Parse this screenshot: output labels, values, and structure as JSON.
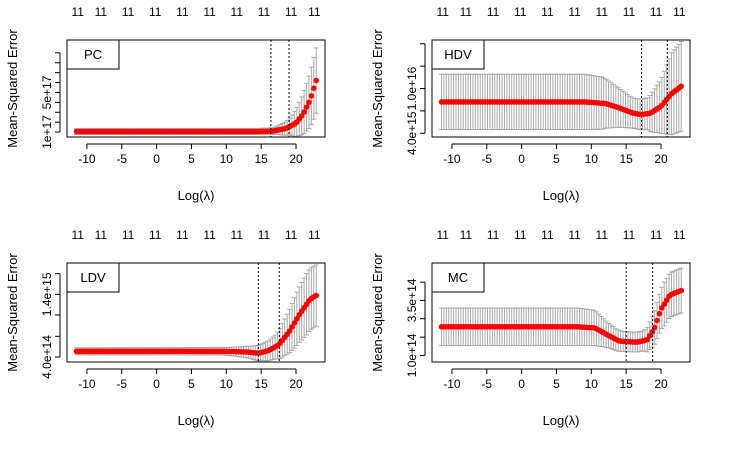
{
  "figure": {
    "colors": {
      "cv_curve": "#ff0000",
      "error_bars": "#a9a9a9",
      "vline": "#000000",
      "frame": "#000000"
    }
  },
  "chart_data": [
    {
      "type": "scatter",
      "panel": "top-left",
      "legend_label": "PC",
      "legend_position": "top-left",
      "xlabel": "Log(λ)",
      "ylabel": "Mean-Squared Error",
      "xlim": [
        -12,
        23.3
      ],
      "ylim": [
        5e+16,
        1.03e+18
      ],
      "xticks": [
        -10,
        -5,
        0,
        5,
        10,
        15,
        20
      ],
      "xtick_labels": [
        "-10",
        "-5",
        "0",
        "5",
        "10",
        "15",
        "20"
      ],
      "yticks": [
        1e+17,
        2e+17,
        3e+17,
        4e+17,
        5e+17,
        6e+17,
        7e+17,
        8e+17,
        9e+17
      ],
      "ytick_labels": [
        "1e+17",
        "",
        "",
        "",
        "5e+17",
        "",
        "",
        "",
        ""
      ],
      "top_axis_labels": [
        "11",
        "11",
        "11",
        "11",
        "11",
        "11",
        "11",
        "11",
        "11",
        "11"
      ],
      "vlines": [
        16.4,
        19.0
      ],
      "mean_profile": [
        [
          -11.5,
          1.05e+17
        ],
        [
          14,
          1.05e+17
        ],
        [
          16.5,
          1.08e+17
        ],
        [
          18.5,
          1.35e+17
        ],
        [
          20,
          1.9e+17
        ],
        [
          21,
          2.8e+17
        ],
        [
          22,
          4.2e+17
        ],
        [
          22.9,
          6.2e+17
        ]
      ],
      "band_profile": [
        [
          -11.5,
          3e+16
        ],
        [
          14,
          3e+16
        ],
        [
          17,
          3.5e+16
        ],
        [
          19,
          8e+16
        ],
        [
          20.5,
          1.7e+17
        ],
        [
          21.5,
          2.4e+17
        ],
        [
          22.5,
          3.1e+17
        ],
        [
          22.9,
          3.3e+17
        ]
      ]
    },
    {
      "type": "scatter",
      "panel": "top-right",
      "legend_label": "HDV",
      "legend_position": "top-left",
      "xlabel": "Log(λ)",
      "ylabel": "Mean-Squared Error",
      "xlim": [
        -12,
        23.3
      ],
      "ylim": [
        3500000000000000.0,
        1.65e+16
      ],
      "xticks": [
        -10,
        -5,
        0,
        5,
        10,
        15,
        20
      ],
      "xtick_labels": [
        "-10",
        "-5",
        "0",
        "5",
        "10",
        "15",
        "20"
      ],
      "yticks": [
        4000000000000000.0,
        7000000000000000.0,
        1e+16,
        1.3e+16,
        1.6e+16
      ],
      "ytick_labels": [
        "4.0e+15",
        "",
        "1.0e+16",
        "",
        ""
      ],
      "top_axis_labels": [
        "11",
        "11",
        "11",
        "11",
        "11",
        "11",
        "11",
        "11",
        "11",
        "11"
      ],
      "vlines": [
        17.2,
        20.9
      ],
      "mean_profile": [
        [
          -11.5,
          8200000000000000.0
        ],
        [
          9,
          8200000000000000.0
        ],
        [
          12,
          8000000000000000.0
        ],
        [
          14,
          7400000000000000.0
        ],
        [
          16,
          6700000000000000.0
        ],
        [
          17.2,
          6500000000000000.0
        ],
        [
          18.5,
          6700000000000000.0
        ],
        [
          20,
          7600000000000000.0
        ],
        [
          21.5,
          9300000000000000.0
        ],
        [
          22.9,
          1.03e+16
        ]
      ],
      "band_profile": [
        [
          -11.5,
          3700000000000000.0
        ],
        [
          9,
          3700000000000000.0
        ],
        [
          11.5,
          3500000000000000.0
        ],
        [
          14,
          2600000000000000.0
        ],
        [
          16,
          2000000000000000.0
        ],
        [
          18,
          2100000000000000.0
        ],
        [
          20,
          3600000000000000.0
        ],
        [
          21.5,
          5500000000000000.0
        ],
        [
          22.9,
          6000000000000000.0
        ]
      ]
    },
    {
      "type": "scatter",
      "panel": "bottom-left",
      "legend_label": "LDV",
      "legend_position": "top-left",
      "xlabel": "Log(λ)",
      "ylabel": "Mean-Squared Error",
      "xlim": [
        -12,
        23.3
      ],
      "ylim": [
        320000000000000.0,
        1900000000000000.0
      ],
      "xticks": [
        -10,
        -5,
        0,
        5,
        10,
        15,
        20
      ],
      "xtick_labels": [
        "-10",
        "-5",
        "0",
        "5",
        "10",
        "15",
        "20"
      ],
      "yticks": [
        400000000000000.0,
        730000000000000.0,
        1070000000000000.0,
        1400000000000000.0,
        1730000000000000.0
      ],
      "ytick_labels": [
        "4.0e+14",
        "",
        "",
        "1.4e+15",
        ""
      ],
      "top_axis_labels": [
        "11",
        "11",
        "11",
        "11",
        "11",
        "11",
        "11",
        "11",
        "11",
        "11"
      ],
      "vlines": [
        14.6,
        17.6
      ],
      "mean_profile": [
        [
          -11.5,
          490000000000000.0
        ],
        [
          10,
          490000000000000.0
        ],
        [
          13,
          480000000000000.0
        ],
        [
          14.6,
          460000000000000.0
        ],
        [
          16,
          500000000000000.0
        ],
        [
          17.5,
          590000000000000.0
        ],
        [
          19,
          800000000000000.0
        ],
        [
          20.5,
          1080000000000000.0
        ],
        [
          22,
          1320000000000000.0
        ],
        [
          22.9,
          1380000000000000.0
        ]
      ],
      "band_profile": [
        [
          -11.5,
          55000000000000.0
        ],
        [
          10,
          60000000000000.0
        ],
        [
          13,
          90000000000000.0
        ],
        [
          15,
          130000000000000.0
        ],
        [
          17,
          190000000000000.0
        ],
        [
          18.5,
          300000000000000.0
        ],
        [
          20,
          420000000000000.0
        ],
        [
          21.5,
          490000000000000.0
        ],
        [
          22.9,
          490000000000000.0
        ]
      ]
    },
    {
      "type": "scatter",
      "panel": "bottom-right",
      "legend_label": "MC",
      "legend_position": "top-left",
      "xlabel": "Log(λ)",
      "ylabel": "Mean-Squared Error",
      "xlim": [
        -12,
        23.3
      ],
      "ylim": [
        70000000000000.0,
        520000000000000.0
      ],
      "xticks": [
        -10,
        -5,
        0,
        5,
        10,
        15,
        20
      ],
      "xtick_labels": [
        "-10",
        "-5",
        "0",
        "5",
        "10",
        "15",
        "20"
      ],
      "yticks": [
        100000000000000.0,
        183000000000000.0,
        267000000000000.0,
        350000000000000.0,
        433000000000000.0
      ],
      "ytick_labels": [
        "1.0e+14",
        "",
        "",
        "3.5e+14",
        ""
      ],
      "top_axis_labels": [
        "11",
        "11",
        "11",
        "11",
        "11",
        "11",
        "11",
        "11",
        "11",
        "11"
      ],
      "vlines": [
        15.0,
        18.8
      ],
      "mean_profile": [
        [
          -11.5,
          230000000000000.0
        ],
        [
          8,
          230000000000000.0
        ],
        [
          10.5,
          225000000000000.0
        ],
        [
          12.5,
          190000000000000.0
        ],
        [
          14,
          165000000000000.0
        ],
        [
          16.5,
          160000000000000.0
        ],
        [
          18,
          170000000000000.0
        ],
        [
          19,
          220000000000000.0
        ],
        [
          20,
          310000000000000.0
        ],
        [
          21.3,
          375000000000000.0
        ],
        [
          22.9,
          395000000000000.0
        ]
      ],
      "band_profile": [
        [
          -11.5,
          85000000000000.0
        ],
        [
          8,
          85000000000000.0
        ],
        [
          10.5,
          80000000000000.0
        ],
        [
          12.5,
          55000000000000.0
        ],
        [
          14.5,
          45000000000000.0
        ],
        [
          17.5,
          45000000000000.0
        ],
        [
          19,
          75000000000000.0
        ],
        [
          20.5,
          100000000000000.0
        ],
        [
          22.9,
          102000000000000.0
        ]
      ]
    }
  ]
}
